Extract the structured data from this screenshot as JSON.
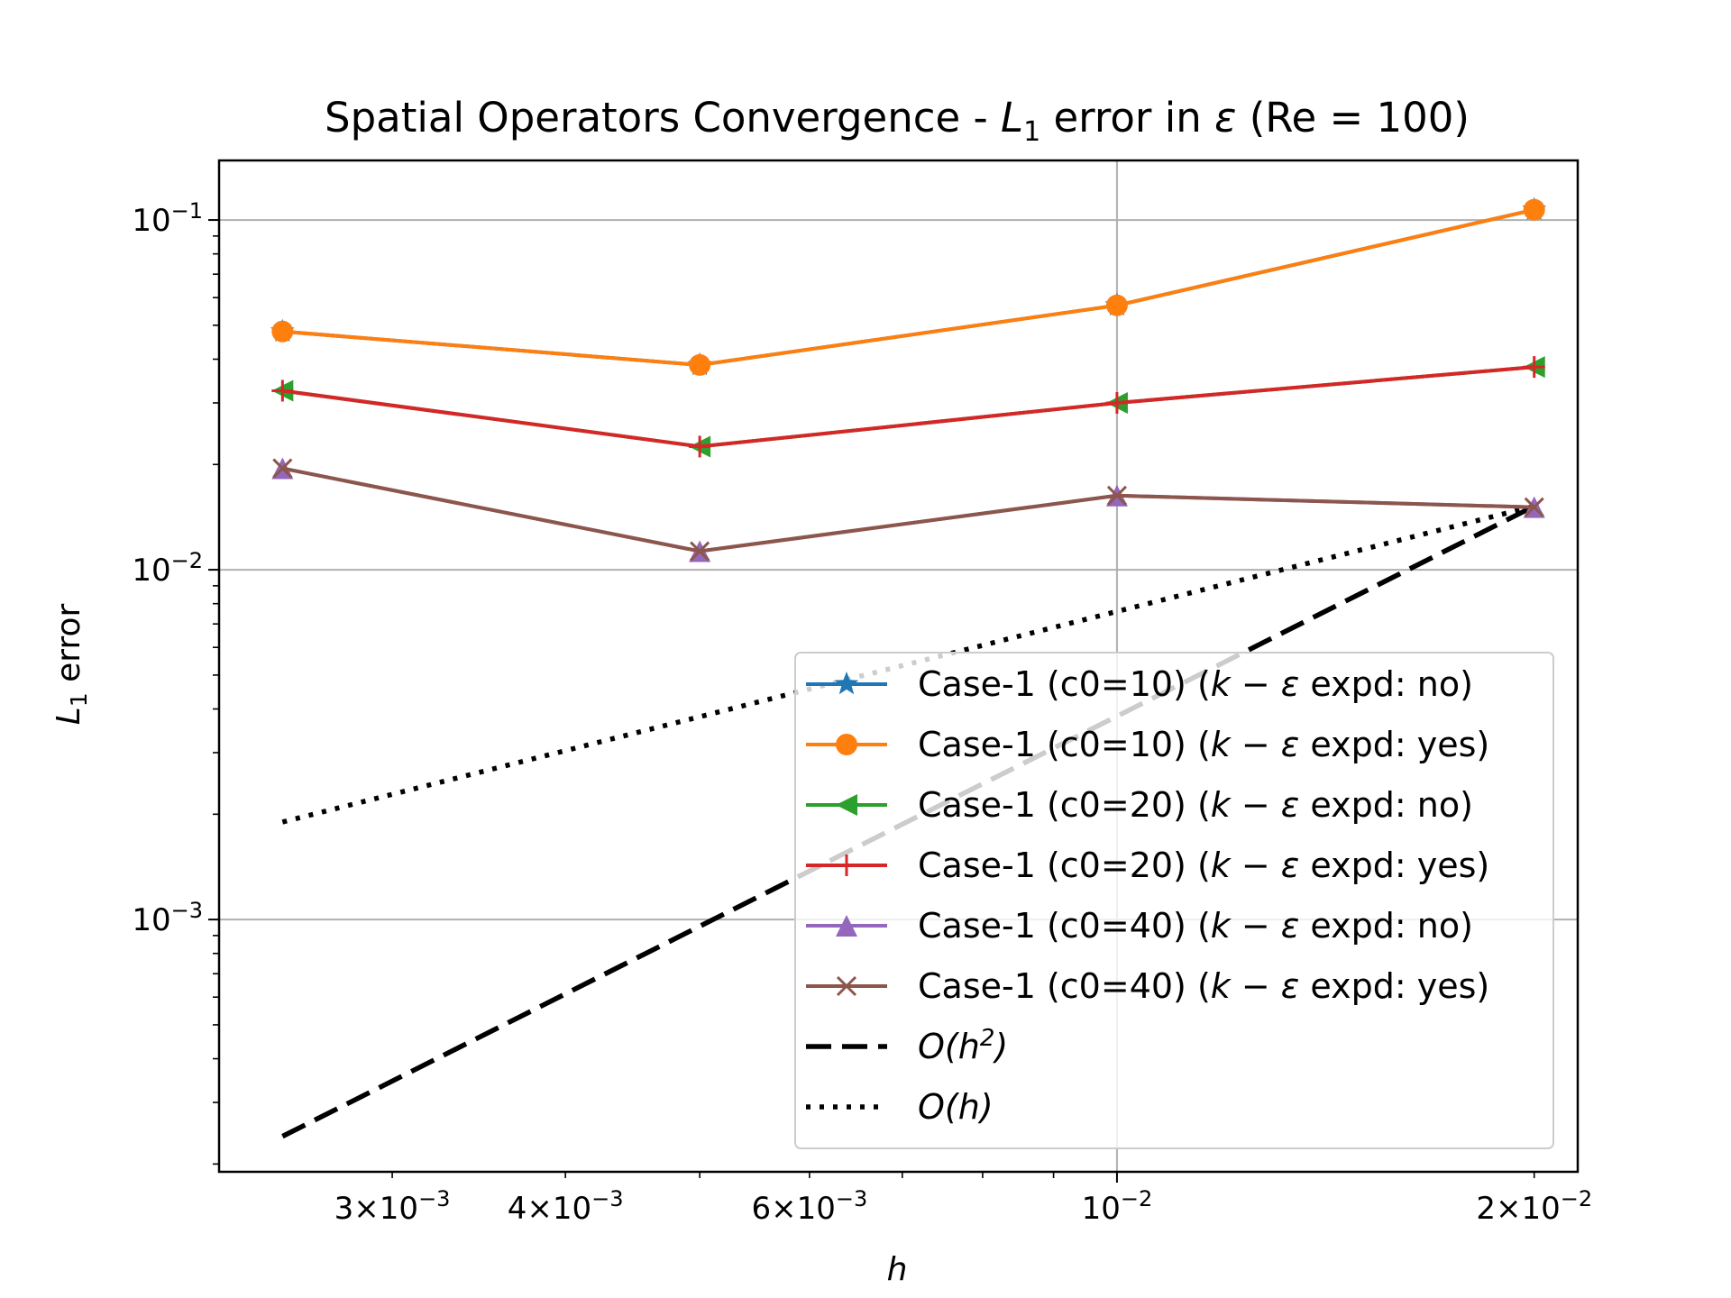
{
  "chart_data": {
    "type": "line",
    "title": {
      "prefix": "Spatial Operators Convergence - ",
      "L": "L",
      "sub": "1",
      "mid": " error in ",
      "eps": "ε",
      "suffix": " (Re = 100)"
    },
    "xlabel": "h",
    "ylabel": {
      "L": "L",
      "sub": "1",
      "rest": " error"
    },
    "xscale": "log",
    "yscale": "log",
    "xlim": [
      0.00225,
      0.0215
    ],
    "ylim": [
      0.00019,
      0.148
    ],
    "grid": true,
    "legend_position": "lower-right",
    "x_ticks": [
      {
        "value": 0.003,
        "mant": "3",
        "times": "×",
        "base": "10",
        "exp": "−3"
      },
      {
        "value": 0.004,
        "mant": "4",
        "times": "×",
        "base": "10",
        "exp": "−3"
      },
      {
        "value": 0.006,
        "mant": "6",
        "times": "×",
        "base": "10",
        "exp": "−3"
      },
      {
        "value": 0.01,
        "mant": "",
        "times": "",
        "base": "10",
        "exp": "−2"
      },
      {
        "value": 0.02,
        "mant": "2",
        "times": "×",
        "base": "10",
        "exp": "−2"
      }
    ],
    "x_major_grid": [
      0.01
    ],
    "x_minor_ticks": [
      0.003,
      0.004,
      0.005,
      0.006,
      0.007,
      0.008,
      0.009,
      0.02
    ],
    "y_ticks": [
      {
        "value": 0.1,
        "base": "10",
        "exp": "−1"
      },
      {
        "value": 0.01,
        "base": "10",
        "exp": "−2"
      },
      {
        "value": 0.001,
        "base": "10",
        "exp": "−3"
      }
    ],
    "y_minor_ticks": [
      0.0002,
      0.0003,
      0.0004,
      0.0005,
      0.0006,
      0.0007,
      0.0008,
      0.0009,
      0.002,
      0.003,
      0.004,
      0.005,
      0.006,
      0.007,
      0.008,
      0.009,
      0.02,
      0.03,
      0.04,
      0.05,
      0.06,
      0.07,
      0.08,
      0.09
    ],
    "x": [
      0.0025,
      0.005,
      0.01,
      0.02
    ],
    "series": [
      {
        "name": "Case-1 (c0=10) (k−ε expd: no)",
        "prefix": "Case-1 (c0=10) (",
        "math": "k − ε",
        "suffix": " expd: no)",
        "color": "#1f77b4",
        "marker": "star",
        "y": [
          0.048,
          0.0385,
          0.057,
          0.107
        ]
      },
      {
        "name": "Case-1 (c0=10) (k−ε expd: yes)",
        "prefix": "Case-1 (c0=10) (",
        "math": "k − ε",
        "suffix": " expd: yes)",
        "color": "#ff7f0e",
        "marker": "circle",
        "y": [
          0.048,
          0.0385,
          0.057,
          0.107
        ]
      },
      {
        "name": "Case-1 (c0=20) (k−ε expd: no)",
        "prefix": "Case-1 (c0=20) (",
        "math": "k − ε",
        "suffix": " expd: no)",
        "color": "#2ca02c",
        "marker": "triangle-left",
        "y": [
          0.0325,
          0.0225,
          0.03,
          0.038
        ]
      },
      {
        "name": "Case-1 (c0=20) (k−ε expd: yes)",
        "prefix": "Case-1 (c0=20) (",
        "math": "k − ε",
        "suffix": " expd: yes)",
        "color": "#d62728",
        "marker": "plus",
        "y": [
          0.0325,
          0.0225,
          0.03,
          0.038
        ]
      },
      {
        "name": "Case-1 (c0=40) (k−ε expd: no)",
        "prefix": "Case-1 (c0=40) (",
        "math": "k − ε",
        "suffix": " expd: no)",
        "color": "#9467bd",
        "marker": "triangle-up",
        "y": [
          0.0195,
          0.0113,
          0.0163,
          0.0151
        ]
      },
      {
        "name": "Case-1 (c0=40) (k−ε expd: yes)",
        "prefix": "Case-1 (c0=40) (",
        "math": "k − ε",
        "suffix": " expd: yes)",
        "color": "#8c564b",
        "marker": "x",
        "y": [
          0.0195,
          0.0113,
          0.0163,
          0.0151
        ]
      }
    ],
    "reference_lines": [
      {
        "name": "O(h²)",
        "text": "O(h",
        "sup": "2",
        "close": ")",
        "style": "dashed",
        "color": "#000000",
        "x": [
          0.0025,
          0.02
        ],
        "y": [
          0.00024,
          0.0152
        ]
      },
      {
        "name": "O(h)",
        "text": "O(h)",
        "sup": "",
        "close": "",
        "style": "dotted",
        "color": "#000000",
        "x": [
          0.0025,
          0.02
        ],
        "y": [
          0.0019,
          0.0152
        ]
      }
    ]
  }
}
